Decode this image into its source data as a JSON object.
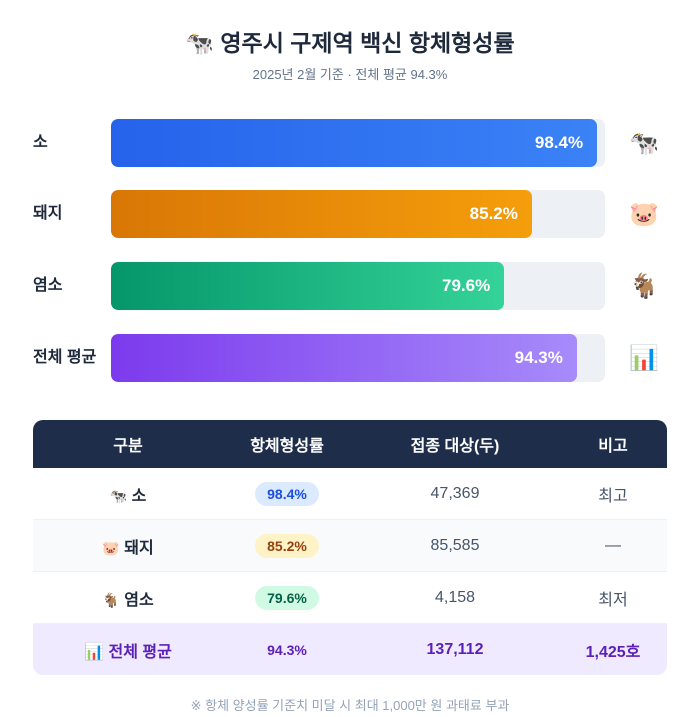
{
  "header": {
    "icon": "🐄",
    "title": "영주시 구제역 백신 항체형성률",
    "subtitle": "2025년 2월 기준 · 전체 평균 94.3%"
  },
  "chart_data": {
    "type": "bar",
    "orientation": "horizontal",
    "categories": [
      "소",
      "돼지",
      "염소",
      "전체 평균"
    ],
    "values": [
      98.4,
      85.2,
      79.6,
      94.3
    ],
    "value_labels": [
      "98.4%",
      "85.2%",
      "79.6%",
      "94.3%"
    ],
    "xlim": [
      0,
      100
    ],
    "icons": [
      "🐄",
      "🐷",
      "🐐",
      "📊"
    ],
    "colors": [
      [
        "#2563eb",
        "#3b82f6"
      ],
      [
        "#d97706",
        "#f59e0b"
      ],
      [
        "#059669",
        "#34d399"
      ],
      [
        "#7c3aed",
        "#a78bfa"
      ]
    ]
  },
  "table": {
    "headers": [
      "구분",
      "항체형성률",
      "접종 대상(두)",
      "비고"
    ],
    "rows": [
      {
        "icon": "🐄",
        "name": "소",
        "rate": "98.4%",
        "target": "47,369",
        "note": "최고",
        "pill_bg": "#dbeafe",
        "pill_fg": "#1d4ed8"
      },
      {
        "icon": "🐷",
        "name": "돼지",
        "rate": "85.2%",
        "target": "85,585",
        "note": "—",
        "pill_bg": "#fef3c7",
        "pill_fg": "#92400e"
      },
      {
        "icon": "🐐",
        "name": "염소",
        "rate": "79.6%",
        "target": "4,158",
        "note": "최저",
        "pill_bg": "#d1fae5",
        "pill_fg": "#065f46"
      }
    ],
    "total": {
      "icon": "📊",
      "name": "전체 평균",
      "rate": "94.3%",
      "target": "137,112",
      "note": "1,425호"
    }
  },
  "footnote": "※ 항체 양성률 기준치 미달 시 최대 1,000만 원 과태료 부과"
}
